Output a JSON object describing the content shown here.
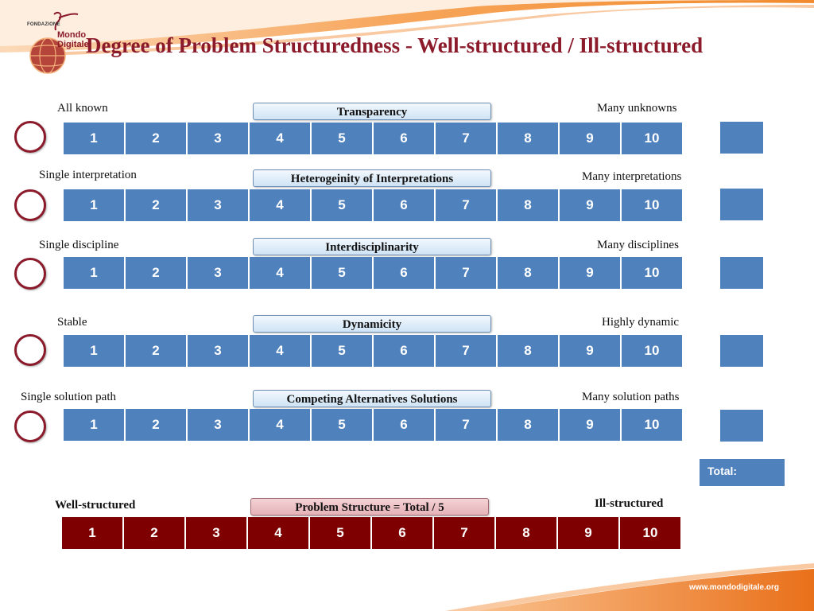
{
  "header": {
    "logo_fondazione": "FONDAZIONE",
    "logo_name": "Mondo Digitale",
    "title": "Degree of Problem Structuredness - Well-structured / Ill-structured"
  },
  "rows": [
    {
      "left": "All known",
      "caption": "Transparency",
      "right": "Many unknowns"
    },
    {
      "left": "Single interpretation",
      "caption": "Heterogeinity of Interpretations",
      "right": "Many interpretations"
    },
    {
      "left": "Single discipline",
      "caption": "Interdisciplinarity",
      "right": "Many disciplines"
    },
    {
      "left": "Stable",
      "caption": "Dynamicity",
      "right": "Highly dynamic"
    },
    {
      "left": "Single solution path",
      "caption": "Competing Alternatives Solutions",
      "right": "Many solution paths"
    }
  ],
  "scale": [
    "1",
    "2",
    "3",
    "4",
    "5",
    "6",
    "7",
    "8",
    "9",
    "10"
  ],
  "total_label": "Total:",
  "summary": {
    "left": "Well-structured",
    "caption": "Problem Structure = Total / 5",
    "right": "Ill-structured"
  },
  "footer": {
    "url": "www.mondodigitale.org"
  },
  "colors": {
    "blue": "#4f81bd",
    "maroon": "#7f0000",
    "title": "#8b1a2b",
    "orange": "#f0862a"
  }
}
